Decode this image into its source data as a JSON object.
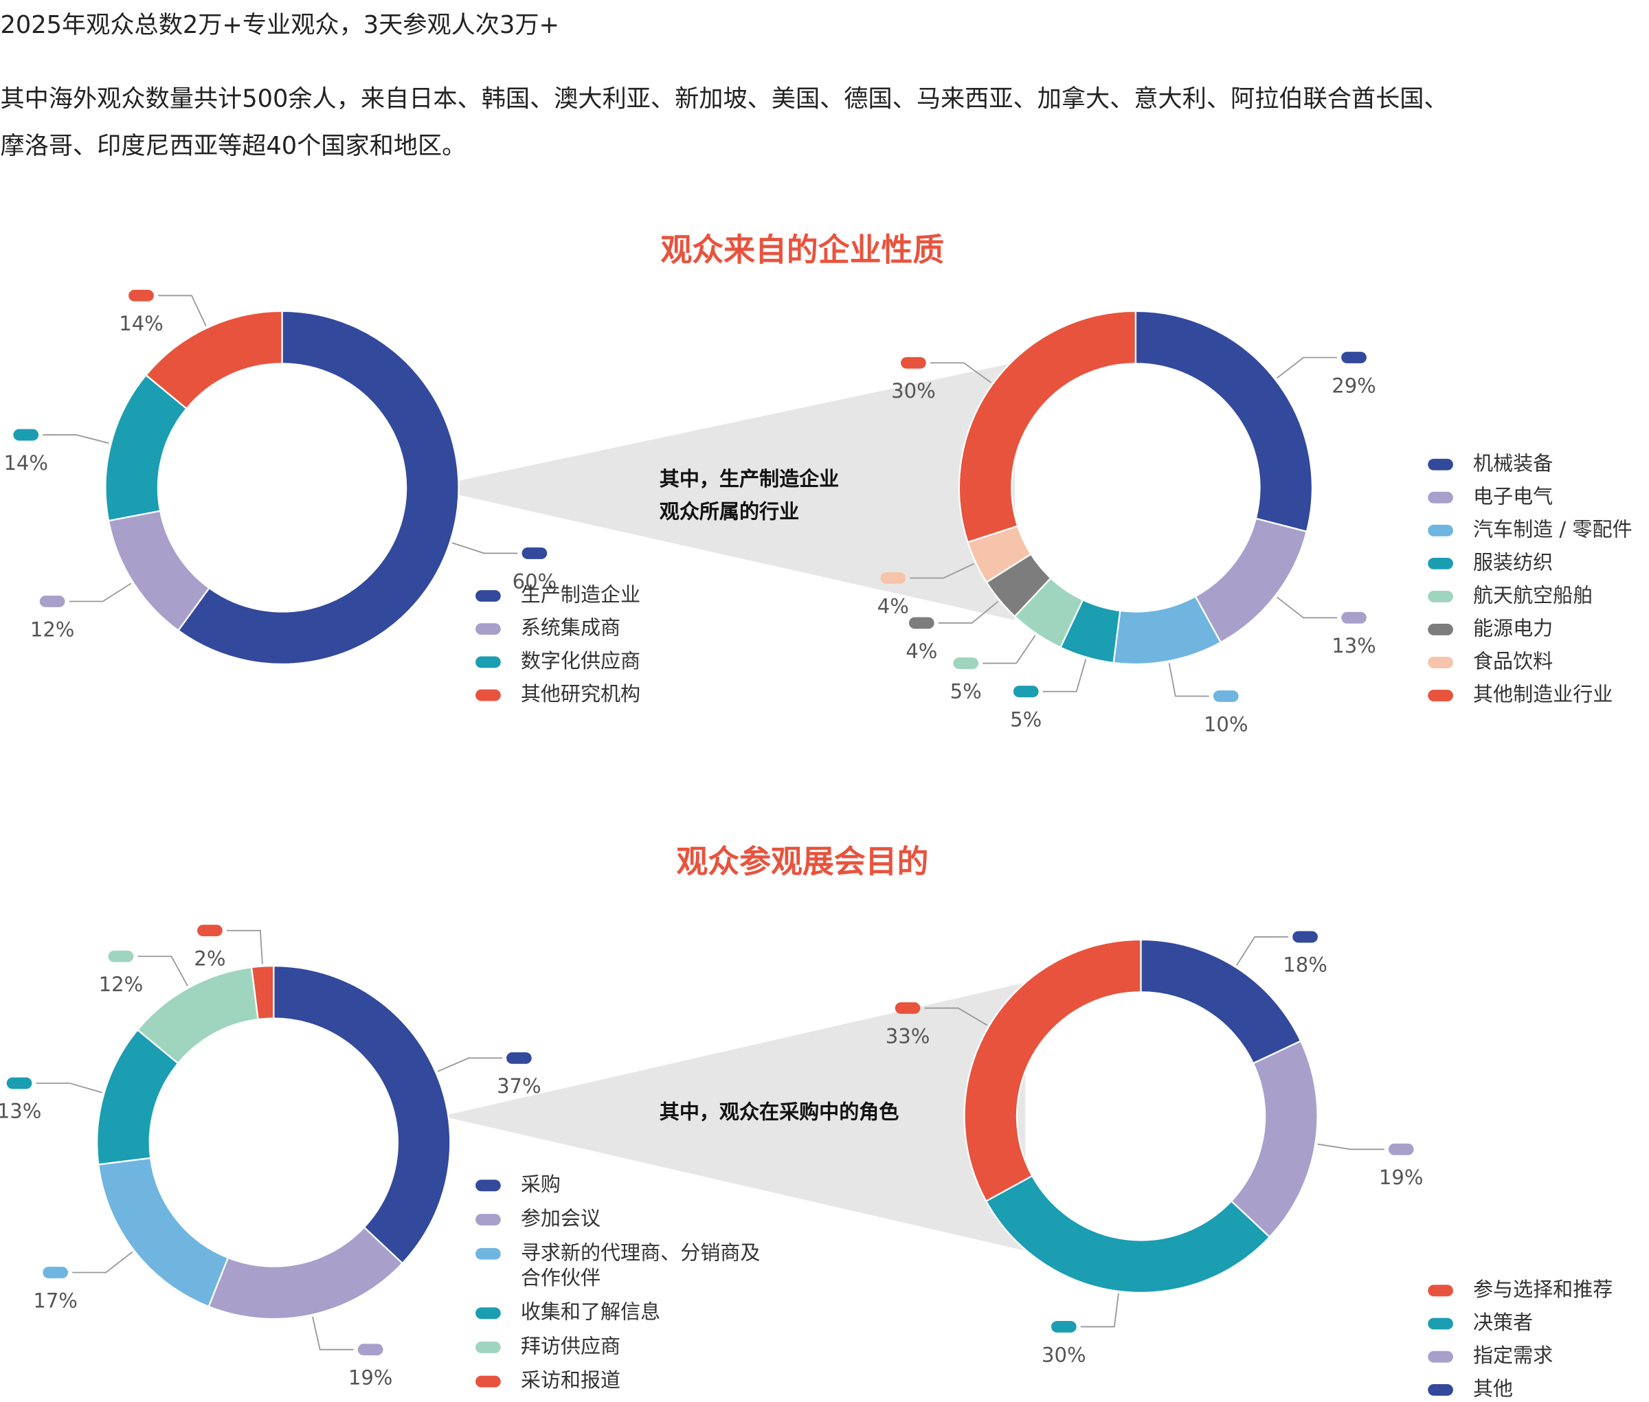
{
  "header": {
    "headline": "2025年观众总数2万+专业观众，3天参观人次3万+",
    "paragraph": [
      "其中海外观众数量共计500余人，来自日本、韩国、澳大利亚、新加坡、美国、德国、马来西亚、加拿大、意大利、阿拉伯联合酋长国、",
      "摩洛哥、印度尼西亚等超40个国家和地区。"
    ]
  },
  "sections": [
    {
      "title": "观众来自的企业性质",
      "note": [
        "其中，生产制造企业",
        "观众所属的行业"
      ]
    },
    {
      "title": "观众参观展会目的",
      "note": [
        "其中，观众在采购中的角色"
      ]
    }
  ],
  "chart_data": [
    {
      "type": "donut",
      "direction": "clockwise",
      "categories": [
        "生产制造企业",
        "系统集成商",
        "数字化供应商",
        "其他研究机构"
      ],
      "values": [
        60,
        12,
        14,
        14
      ],
      "value_labels": [
        "60%",
        "12%",
        "14%",
        "14%"
      ],
      "colors": [
        "#32499c",
        "#a8a0cb",
        "#1b9db2",
        "#e8533d"
      ]
    },
    {
      "type": "donut",
      "direction": "clockwise",
      "categories": [
        "机械装备",
        "电子电气",
        "汽车制造 / 零配件",
        "服装纺织",
        "航天航空船舶",
        "能源电力",
        "食品饮料",
        "其他制造业行业"
      ],
      "values": [
        29,
        13,
        10,
        5,
        5,
        4,
        4,
        30
      ],
      "value_labels": [
        "29%",
        "13%",
        "10%",
        "5%",
        "5%",
        "4%",
        "4%",
        "30%"
      ],
      "colors": [
        "#32499c",
        "#a8a0cb",
        "#6fb5df",
        "#1b9db2",
        "#9fd5bf",
        "#7d7d7d",
        "#f6c4ab",
        "#e8533d"
      ]
    },
    {
      "type": "donut",
      "direction": "clockwise",
      "categories": [
        "采购",
        "参加会议",
        "寻求新的代理商、分销商及合作伙伴",
        "收集和了解信息",
        "拜访供应商",
        "采访和报道"
      ],
      "values": [
        37,
        19,
        17,
        13,
        12,
        2
      ],
      "value_labels": [
        "37%",
        "19%",
        "17%",
        "13%",
        "12%",
        "2%"
      ],
      "colors": [
        "#32499c",
        "#a8a0cb",
        "#6fb5df",
        "#1b9db2",
        "#9fd5bf",
        "#e8533d"
      ]
    },
    {
      "type": "donut",
      "direction": "counterclockwise",
      "categories": [
        "参与选择和推荐",
        "决策者",
        "指定需求",
        "其他"
      ],
      "values": [
        33,
        30,
        19,
        18
      ],
      "value_labels": [
        "33%",
        "30%",
        "19%",
        "18%"
      ],
      "colors": [
        "#e8533d",
        "#1b9db2",
        "#a8a0cb",
        "#32499c"
      ]
    }
  ]
}
